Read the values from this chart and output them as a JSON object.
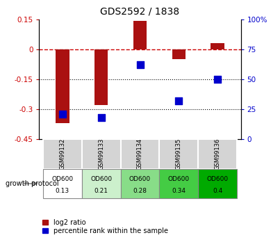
{
  "title": "GDS2592 / 1838",
  "samples": [
    "GSM99132",
    "GSM99133",
    "GSM99134",
    "GSM99135",
    "GSM99136"
  ],
  "log2_ratio": [
    -0.37,
    -0.28,
    0.14,
    -0.05,
    0.03
  ],
  "percentile_rank": [
    21,
    18,
    62,
    32,
    50
  ],
  "protocol_labels_line1": [
    "OD600",
    "OD600",
    "OD600",
    "OD600",
    "OD600"
  ],
  "protocol_labels_line2": [
    "0.13",
    "0.21",
    "0.28",
    "0.34",
    "0.4"
  ],
  "protocol_colors": [
    "#ffffff",
    "#ccf0cc",
    "#88dd88",
    "#44cc44",
    "#00aa00"
  ],
  "bar_color": "#aa1111",
  "dot_color": "#0000cc",
  "ylim_left": [
    -0.45,
    0.15
  ],
  "ylim_right": [
    0,
    100
  ],
  "yticks_left": [
    0.15,
    0.0,
    -0.15,
    -0.3,
    -0.45
  ],
  "yticks_right": [
    100,
    75,
    50,
    25,
    0
  ],
  "bar_width": 0.35,
  "dot_size": 45,
  "legend_red": "log2 ratio",
  "legend_blue": "percentile rank within the sample",
  "growth_label": "growth protocol"
}
